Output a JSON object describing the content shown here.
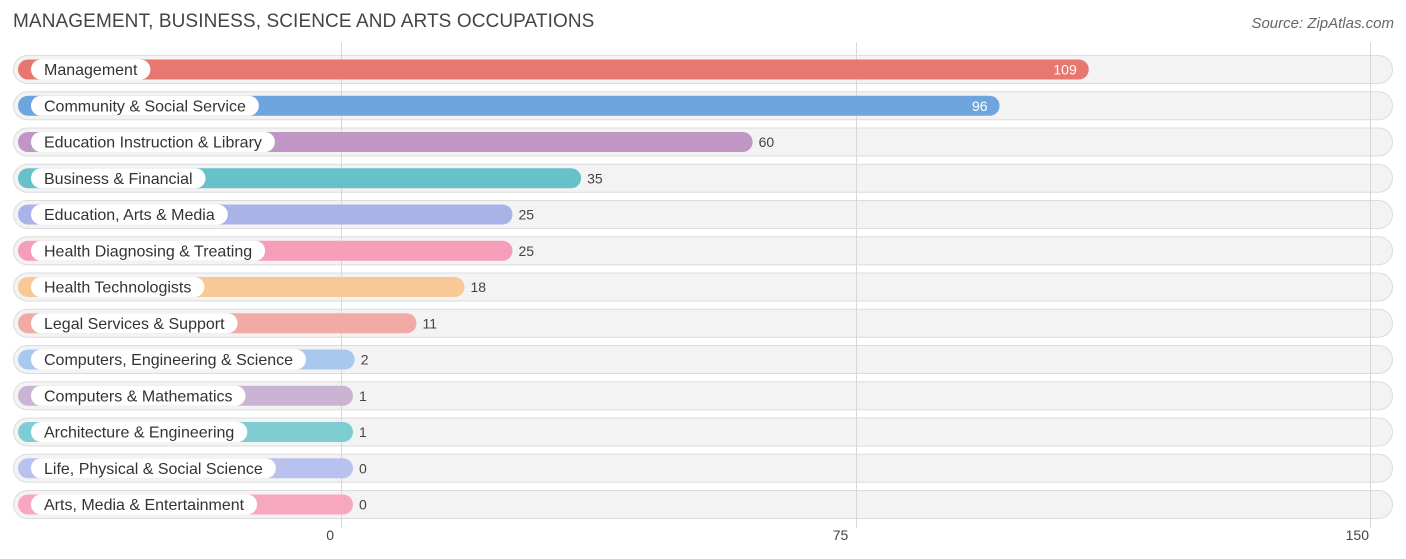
{
  "header": {
    "title": "MANAGEMENT, BUSINESS, SCIENCE AND ARTS OCCUPATIONS",
    "source": "Source: ZipAtlas.com"
  },
  "chart_data": {
    "type": "bar",
    "orientation": "horizontal",
    "title": "MANAGEMENT, BUSINESS, SCIENCE AND ARTS OCCUPATIONS",
    "xlabel": "",
    "ylabel": "",
    "xlim": [
      0,
      150
    ],
    "ticks": [
      0,
      75,
      150
    ],
    "grid": true,
    "categories": [
      "Management",
      "Community & Social Service",
      "Education Instruction & Library",
      "Business & Financial",
      "Education, Arts & Media",
      "Health Diagnosing & Treating",
      "Health Technologists",
      "Legal Services & Support",
      "Computers, Engineering & Science",
      "Computers & Mathematics",
      "Architecture & Engineering",
      "Life, Physical & Social Science",
      "Arts, Media & Entertainment"
    ],
    "values": [
      109,
      96,
      60,
      35,
      25,
      25,
      18,
      11,
      2,
      1,
      1,
      0,
      0
    ],
    "colors": [
      "#e8776f",
      "#6fa5de",
      "#bf96c4",
      "#66c1cb",
      "#a9b3e8",
      "#f59db9",
      "#f8c896",
      "#f2aaa6",
      "#a8c8ee",
      "#cbb3d4",
      "#7ecdd3",
      "#b9c2ee",
      "#f7a8c0"
    ]
  }
}
